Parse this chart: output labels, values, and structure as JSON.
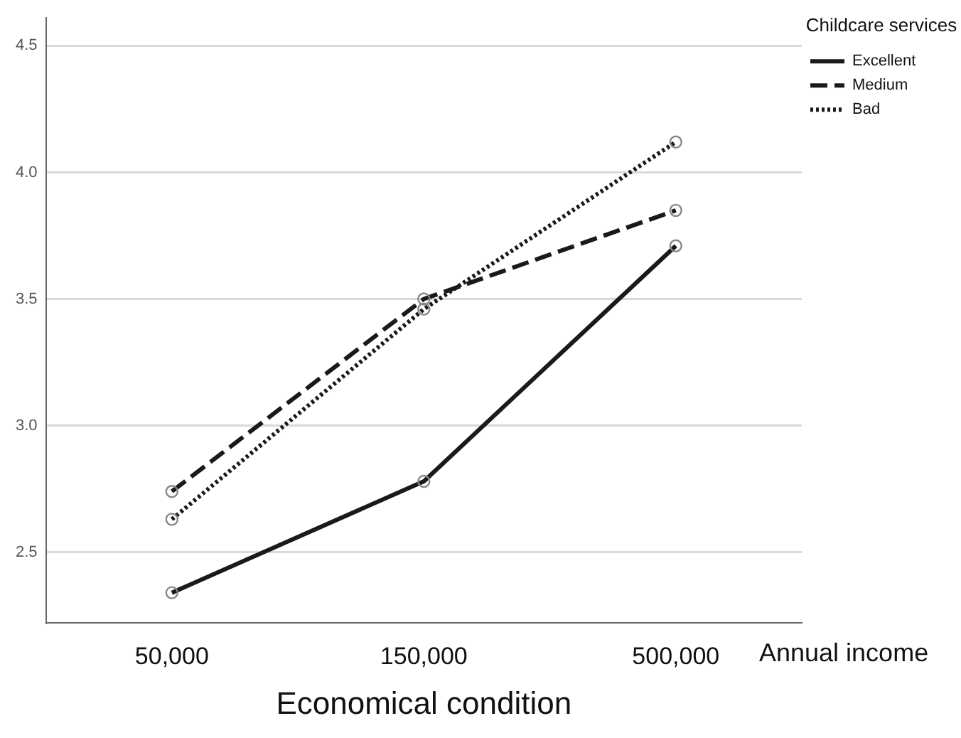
{
  "chart_data": {
    "type": "line",
    "xlabel": "Economical condition",
    "legend_title": "Childcare services",
    "annotations": [
      "Annual income"
    ],
    "categories": [
      "50,000",
      "150,000",
      "500,000"
    ],
    "series": [
      {
        "name": "Excellent",
        "color": "#1a1a1a",
        "line_style": "solid",
        "values": [
          2.34,
          2.78,
          3.71
        ]
      },
      {
        "name": "Medium",
        "color": "#1a1a1a",
        "line_style": "dashed",
        "values": [
          2.74,
          3.5,
          3.85
        ]
      },
      {
        "name": "Bad",
        "color": "#1a1a1a",
        "line_style": "dotted",
        "values": [
          2.63,
          3.46,
          4.12
        ]
      }
    ],
    "ylim": [
      2.22,
      4.61
    ],
    "yticks": [
      2.5,
      {
        "value": 3,
        "label": "3.0"
      },
      3.5,
      {
        "value": 4,
        "label": "4.0"
      },
      4.5
    ],
    "grid": "y",
    "legend": "top right",
    "marker": "circle"
  }
}
